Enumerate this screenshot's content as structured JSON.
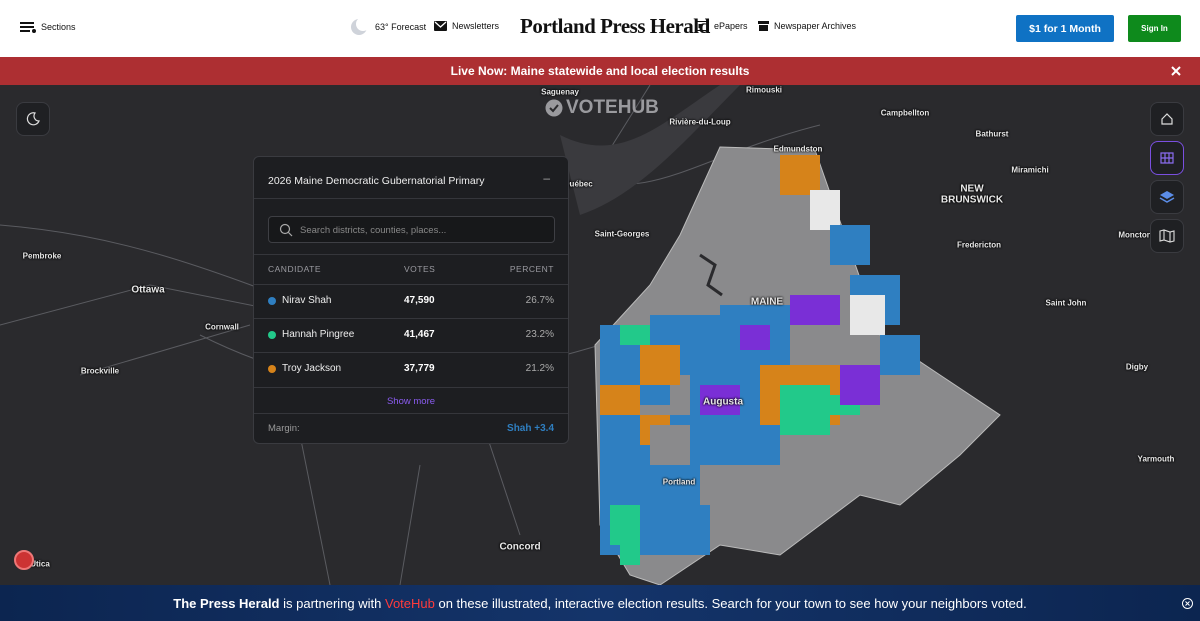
{
  "header": {
    "sections": "Sections",
    "forecast": "63° Forecast",
    "newsletters": "Newsletters",
    "logo": "Portland Press Herald",
    "epapers": "ePapers",
    "archives": "Newspaper Archives",
    "subscribe": "$1 for 1 Month",
    "signin": "Sign In"
  },
  "live_banner": "Live Now: Maine statewide and local election results",
  "map": {
    "brand": "VOTEHUB",
    "labels": [
      "Ottawa",
      "Cornwall",
      "Brockville",
      "Pembroke",
      "Québec",
      "Saint-Georges",
      "Rivière-du-Loup",
      "Rimouski",
      "Edmundston",
      "Campbellton",
      "Bathurst",
      "Miramichi",
      "NEW",
      "BRUNSWICK",
      "Fredericton",
      "Moncton",
      "Saint John",
      "Digby",
      "Yarmouth",
      "MAINE",
      "Augusta",
      "Portland",
      "Concord",
      "Utica",
      "Saguenay"
    ]
  },
  "panel": {
    "title": "2026 Maine Democratic Gubernatorial Primary",
    "search_placeholder": "Search districts, counties, places...",
    "columns": [
      "CANDIDATE",
      "VOTES",
      "PERCENT"
    ],
    "rows": [
      {
        "name": "Nirav Shah",
        "votes": "47,590",
        "percent": "26.7%",
        "color": "#2f7fc1"
      },
      {
        "name": "Hannah Pingree",
        "votes": "41,467",
        "percent": "23.2%",
        "color": "#22c98a"
      },
      {
        "name": "Troy Jackson",
        "votes": "37,779",
        "percent": "21.2%",
        "color": "#d6831a"
      }
    ],
    "show_more": "Show more",
    "margin_label": "Margin:",
    "margin_value": "Shah +3.4"
  },
  "bottom_banner": {
    "part1": "The Press Herald",
    "part2": " is partnering with ",
    "part3": "VoteHub",
    "part4": " on these illustrated, interactive election results. Search for your town to see how your neighbors voted."
  }
}
